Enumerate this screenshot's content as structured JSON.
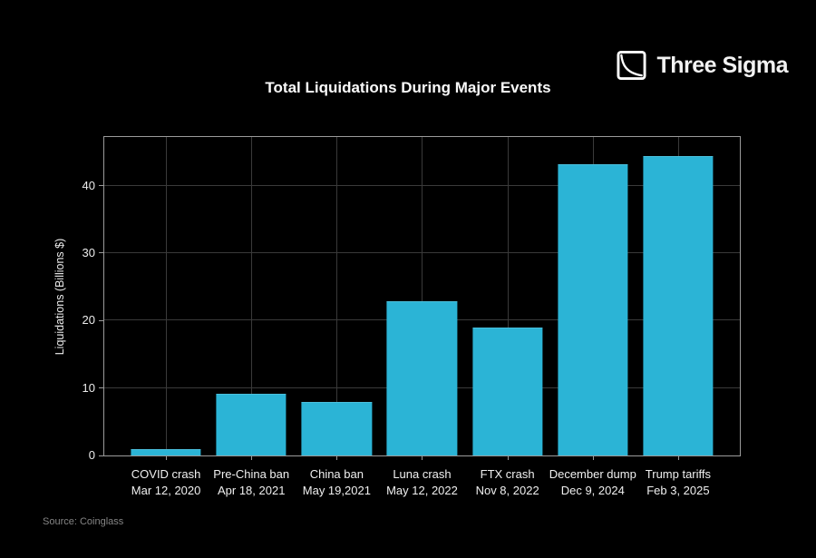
{
  "brand": {
    "name": "Three Sigma"
  },
  "chart_data": {
    "type": "bar",
    "title": "Total Liquidations During Major Events",
    "ylabel": "Liquidations (Billions $)",
    "xlabel": "",
    "categories": [
      "COVID crash",
      "Pre-China ban",
      "China ban",
      "Luna crash",
      "FTX crash",
      "December dump",
      "Trump tariffs"
    ],
    "category_dates": [
      "Mar 12, 2020",
      "Apr 18, 2021",
      "May 19,2021",
      "May 12, 2022",
      "Nov 8, 2022",
      "Dec 9, 2024",
      "Feb 3, 2025"
    ],
    "values": [
      1.0,
      9.2,
      7.9,
      22.9,
      19.0,
      43.2,
      44.4
    ],
    "ylim": [
      0,
      47.2
    ],
    "yticks": [
      0,
      10,
      20,
      30,
      40
    ],
    "grid": true,
    "legend": "none",
    "bar_color": "#2bb4d6",
    "axis_color": "#9b9b9b",
    "grid_color": "#3a3a3a",
    "background": "#000000"
  },
  "footer": {
    "source": "Source: Coinglass"
  }
}
